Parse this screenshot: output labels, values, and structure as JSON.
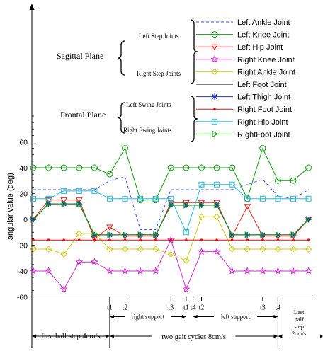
{
  "chart_data": {
    "type": "line",
    "title": "",
    "xlabel": "",
    "ylabel": "angular value (deg)",
    "ylim": [
      -60,
      80
    ],
    "yticks": [
      -60,
      -40,
      -20,
      0,
      20,
      40,
      60
    ],
    "x": [
      0,
      1,
      2,
      3,
      4,
      5,
      6,
      7,
      8,
      9,
      10,
      11,
      12,
      13,
      14,
      15,
      16,
      17,
      18
    ],
    "xlim": [
      0,
      18.25
    ],
    "series": [
      {
        "name": "Left Ankle Joint",
        "color": "#3355ff",
        "dash": "4,3",
        "marker": "none",
        "values": [
          23,
          23,
          23,
          23,
          23,
          30,
          33,
          -8,
          -8,
          23,
          23,
          23,
          23,
          23,
          27,
          31,
          18,
          16,
          23
        ]
      },
      {
        "name": "Left Knee Joint",
        "color": "#119911",
        "marker": "circle",
        "values": [
          40,
          40,
          40,
          40,
          40,
          35,
          55,
          15,
          15,
          40,
          40,
          40,
          40,
          40,
          16,
          55,
          30,
          30,
          40
        ]
      },
      {
        "name": "Left Hip Joint",
        "color": "#ee2222",
        "marker": "triangle-down",
        "values": [
          0,
          15,
          15,
          15,
          -15,
          -6,
          -13,
          -13,
          -13,
          13,
          13,
          13,
          13,
          -13,
          10,
          -13,
          -13,
          -13,
          0
        ]
      },
      {
        "name": "Right Knee Joint",
        "color": "#cc33cc",
        "marker": "star",
        "values": [
          -40,
          -40,
          -54,
          -33,
          -33,
          -40,
          -40,
          -40,
          -40,
          -16,
          -54,
          -25,
          -25,
          -40,
          -40,
          -40,
          -40,
          -40,
          -40
        ]
      },
      {
        "name": "Right Ankle Joint",
        "color": "#cccc22",
        "marker": "diamond",
        "values": [
          -23,
          -23,
          -27,
          -11,
          -11,
          -23,
          -23,
          -23,
          -23,
          -27,
          -32,
          2,
          2,
          -23,
          -23,
          -23,
          -23,
          -23,
          -23
        ]
      },
      {
        "name": "Left Foot Joint",
        "color": "#000000",
        "marker": "none",
        "values": [
          0,
          12,
          12,
          12,
          -12,
          -12,
          -12,
          -12,
          -12,
          11,
          11,
          11,
          11,
          -12,
          -12,
          -12,
          -12,
          -12,
          0
        ]
      },
      {
        "name": "Left Thigh Joint",
        "color": "#2233cc",
        "marker": "star-plus",
        "values": [
          0,
          12,
          12,
          12,
          -12,
          -12,
          -12,
          -12,
          -12,
          11,
          11,
          11,
          11,
          -12,
          -12,
          -12,
          -12,
          -12,
          0
        ]
      },
      {
        "name": "Right Foot Joint",
        "color": "#dd1111",
        "marker": "dot",
        "values": [
          -16,
          -16,
          -16,
          -16,
          -16,
          -16,
          -16,
          -16,
          -16,
          -16,
          -16,
          -16,
          -16,
          -16,
          -16,
          -16,
          -16,
          -16,
          -16
        ]
      },
      {
        "name": "Right Hip Joint",
        "color": "#22bbdd",
        "marker": "square",
        "values": [
          16,
          16,
          22,
          22,
          22,
          16,
          16,
          16,
          16,
          16,
          -10,
          27,
          27,
          27,
          16,
          16,
          16,
          16,
          16
        ]
      },
      {
        "name": "RIghtFoot Joint",
        "color": "#119911",
        "marker": "triangle-right",
        "values": [
          0,
          12,
          12,
          12,
          -12,
          -12,
          -12,
          -12,
          -12,
          11,
          11,
          11,
          11,
          -12,
          -12,
          -12,
          -12,
          -12,
          0
        ]
      }
    ],
    "legend_position": "top-right",
    "grid": false,
    "annotations": {
      "sagittal_plane": "Sagittal Plane",
      "frontal_plane": "Frontal Plane",
      "left_step_joints": "Left Step Joints",
      "right_step_joints": "RIght Step Joints",
      "left_swing_joints": "Left Swing Joints",
      "right_swing_joints": "Right Swing Joints"
    },
    "phase_markers": [
      {
        "label": "t1",
        "x": 5
      },
      {
        "label": "t2",
        "x": 6
      },
      {
        "label": "t3",
        "x": 9
      },
      {
        "label": "t1",
        "x": 10
      },
      {
        "label": "t4",
        "x": 10.45
      },
      {
        "label": "t2",
        "x": 11
      },
      {
        "label": "t3",
        "x": 15
      },
      {
        "label": "t4",
        "x": 16
      }
    ],
    "support_labels": [
      {
        "label": "right support",
        "x1": 5,
        "x2": 10
      },
      {
        "label": "left support",
        "x1": 10.45,
        "x2": 16
      }
    ],
    "speed_labels": [
      {
        "label": "first half step 4cm/s",
        "x1": 0,
        "x2": 5
      },
      {
        "label": "two gait cycles 8cm/s",
        "x1": 5,
        "x2": 16
      },
      {
        "label": "Last half step 2cm/s",
        "lines": [
          "Last",
          "half",
          "step",
          "2cm/s"
        ],
        "x1": 16,
        "x2": 18.25
      }
    ]
  }
}
